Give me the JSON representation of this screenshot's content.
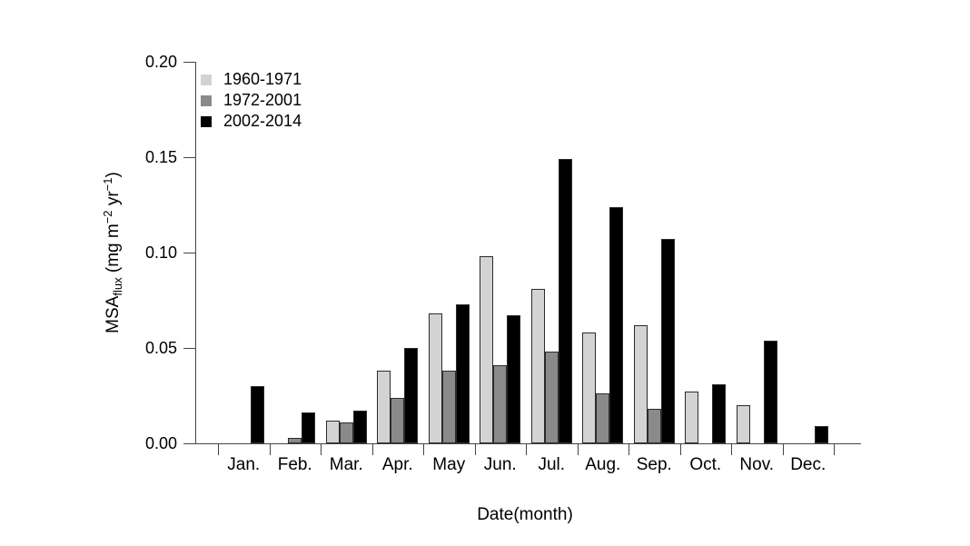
{
  "chart_data": {
    "type": "bar",
    "title": "",
    "xlabel": "Date(month)",
    "ylabel": "MSA_flux (mg m^-2 yr^-1)",
    "ylabel_parts": [
      {
        "text": "MSA",
        "style": "normal"
      },
      {
        "text": "flux",
        "style": "sub"
      },
      {
        "text": " (mg m",
        "style": "normal"
      },
      {
        "text": "−2",
        "style": "sup"
      },
      {
        "text": " yr",
        "style": "normal"
      },
      {
        "text": "−1",
        "style": "sup"
      },
      {
        "text": ")",
        "style": "normal"
      }
    ],
    "categories": [
      "Jan.",
      "Feb.",
      "Mar.",
      "Apr.",
      "May",
      "Jun.",
      "Jul.",
      "Aug.",
      "Sep.",
      "Oct.",
      "Nov.",
      "Dec."
    ],
    "series": [
      {
        "name": "1960-1971",
        "color": "#d3d3d3",
        "values": [
          0,
          0,
          0.012,
          0.038,
          0.068,
          0.098,
          0.081,
          0.058,
          0.062,
          0.027,
          0.02,
          0
        ]
      },
      {
        "name": "1972-2001",
        "color": "#8a8a8a",
        "values": [
          0,
          0.003,
          0.011,
          0.024,
          0.038,
          0.041,
          0.048,
          0.026,
          0.018,
          0,
          0,
          0
        ]
      },
      {
        "name": "2002-2014",
        "color": "#000000",
        "values": [
          0.03,
          0.016,
          0.017,
          0.05,
          0.073,
          0.067,
          0.149,
          0.124,
          0.107,
          0.031,
          0.054,
          0.009
        ]
      }
    ],
    "ylim": [
      0,
      0.2
    ],
    "y_ticks": [
      {
        "value": 0.0,
        "label": "0.00"
      },
      {
        "value": 0.05,
        "label": "0.05"
      },
      {
        "value": 0.1,
        "label": "0.10"
      },
      {
        "value": 0.15,
        "label": "0.15"
      },
      {
        "value": 0.2,
        "label": "0.20"
      }
    ],
    "grid": false,
    "legend_position": "top-left",
    "colors": {
      "axis": "#444444",
      "bar_border": "#2b2b2b",
      "background": "#ffffff",
      "text": "#000000"
    }
  }
}
